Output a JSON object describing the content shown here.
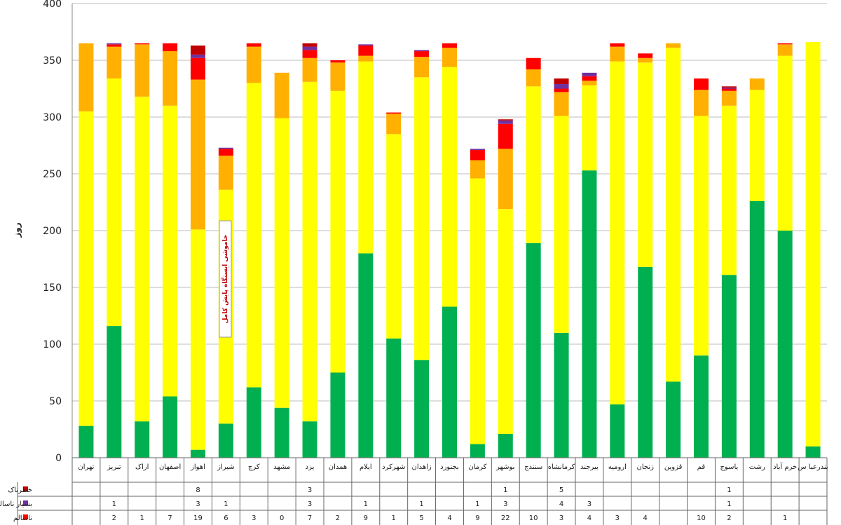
{
  "chart_data": {
    "type": "bar",
    "stacked": true,
    "ylabel": "روز",
    "ylim": [
      0,
      400
    ],
    "yticks": [
      0,
      50,
      100,
      150,
      200,
      250,
      300,
      350,
      400
    ],
    "grid": true,
    "categories": [
      "تهران",
      "تبریز",
      "اراک",
      "اصفهان",
      "اهواز",
      "شیراز",
      "کرج",
      "مشهد",
      "یزد",
      "همدان",
      "ایلام",
      "شهرکرد",
      "زاهدان",
      "بجنورد",
      "کرمان",
      "بوشهر",
      "سنندج",
      "کرمانشاه",
      "بیرجند",
      "ارومیه",
      "زنجان",
      "قزوین",
      "قم",
      "یاسوج",
      "رشت",
      "خرم آباد",
      "بندرعبا س"
    ],
    "series": [
      {
        "color": "#00b050",
        "values": [
          28,
          116,
          32,
          54,
          7,
          30,
          62,
          44,
          32,
          75,
          180,
          105,
          86,
          133,
          12,
          21,
          189,
          110,
          253,
          47,
          168,
          67,
          90,
          161,
          226,
          200,
          10
        ]
      },
      {
        "color": "#ffff00",
        "values": [
          277,
          218,
          286,
          256,
          194,
          206,
          268,
          255,
          299,
          248,
          169,
          180,
          249,
          211,
          234,
          198,
          138,
          191,
          75,
          302,
          180,
          294,
          211,
          149,
          98,
          154,
          356
        ]
      },
      {
        "color": "#ffb000",
        "values": [
          60,
          28,
          46,
          48,
          132,
          30,
          32,
          40,
          21,
          25,
          5,
          18,
          18,
          17,
          16,
          53,
          15,
          21,
          4,
          13,
          4,
          4,
          23,
          13,
          10,
          10,
          0
        ]
      },
      {
        "name": "ناسالم",
        "color": "#ff0000",
        "values": [
          0,
          2,
          1,
          7,
          19,
          6,
          3,
          0,
          7,
          2,
          9,
          1,
          5,
          4,
          9,
          22,
          10,
          3,
          4,
          3,
          4,
          0,
          10,
          2,
          0,
          1,
          0
        ]
      },
      {
        "name": "بسیار ناسالم",
        "color": "#7030a0",
        "values": [
          0,
          1,
          0,
          0,
          3,
          1,
          0,
          0,
          3,
          0,
          1,
          0,
          1,
          0,
          1,
          3,
          0,
          4,
          3,
          0,
          0,
          0,
          0,
          1,
          0,
          0,
          0
        ]
      },
      {
        "name": "خطرناک",
        "color": "#c00000",
        "values": [
          0,
          0,
          0,
          0,
          8,
          0,
          0,
          0,
          3,
          0,
          0,
          0,
          0,
          0,
          0,
          1,
          0,
          5,
          0,
          0,
          0,
          0,
          0,
          1,
          0,
          0,
          0
        ]
      }
    ],
    "table": {
      "legend": [
        "خطرناک",
        "بسیار ناسالم",
        "ناسالم"
      ],
      "rows": [
        [
          "",
          "",
          "",
          "",
          "8",
          "",
          "",
          "",
          "3",
          "",
          "",
          "",
          "",
          "",
          "",
          "1",
          "",
          "5",
          "",
          "",
          "",
          "",
          "",
          "1",
          "",
          "",
          ""
        ],
        [
          "",
          "1",
          "",
          "",
          "3",
          "1",
          "",
          "",
          "3",
          "",
          "1",
          "",
          "1",
          "",
          "1",
          "3",
          "",
          "4",
          "3",
          "",
          "",
          "",
          "",
          "1",
          "",
          "",
          ""
        ],
        [
          "",
          "2",
          "1",
          "7",
          "19",
          "6",
          "3",
          "0",
          "7",
          "2",
          "9",
          "1",
          "5",
          "4",
          "9",
          "22",
          "10",
          "3",
          "4",
          "3",
          "4",
          "",
          "10",
          "2",
          "",
          "1",
          ""
        ]
      ]
    },
    "annotation": "خاموشی ایستگاه پایش کامل"
  }
}
